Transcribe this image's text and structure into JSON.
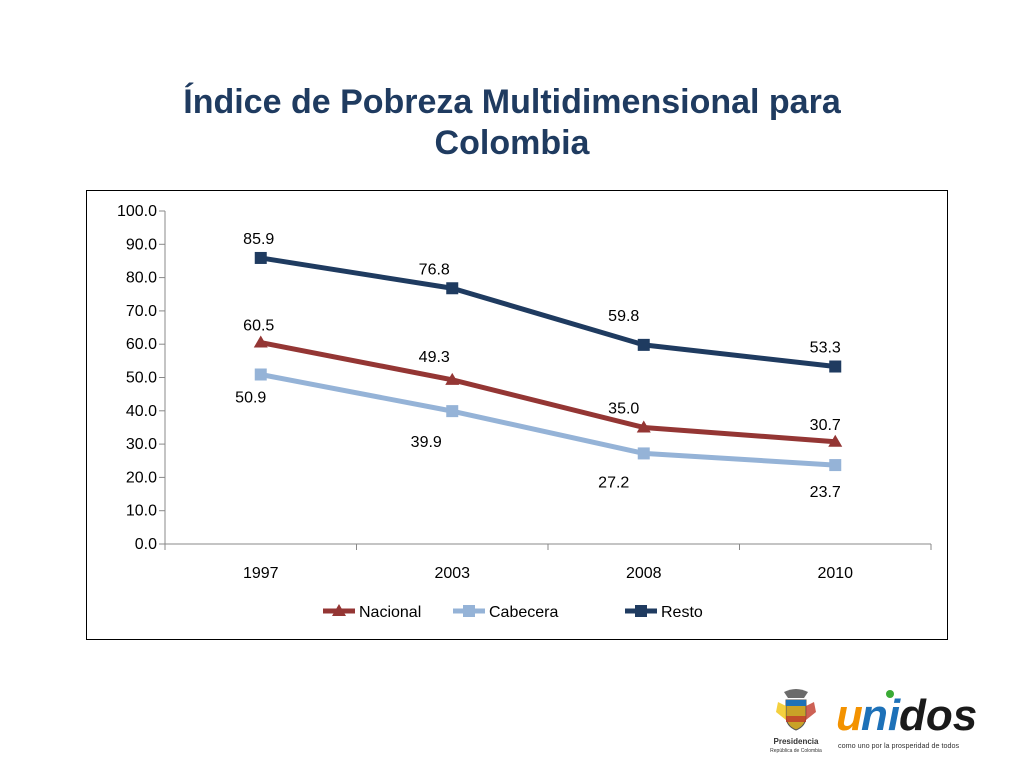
{
  "slide": {
    "title_line1": "Índice de Pobreza Multidimensional para",
    "title_line2": "Colombia"
  },
  "chart_data": {
    "type": "line",
    "title": "",
    "xlabel": "",
    "ylabel": "",
    "categories": [
      "1997",
      "2003",
      "2008",
      "2010"
    ],
    "ylim": [
      0,
      100
    ],
    "y_ticks": [
      0,
      10,
      20,
      30,
      40,
      50,
      60,
      70,
      80,
      90,
      100
    ],
    "y_tick_labels": [
      "0.0",
      "10.0",
      "20.0",
      "30.0",
      "40.0",
      "50.0",
      "60.0",
      "70.0",
      "80.0",
      "90.0",
      "100.0"
    ],
    "grid": false,
    "legend_position": "bottom",
    "series": [
      {
        "name": "Nacional",
        "values": [
          60.5,
          49.3,
          35.0,
          30.7
        ],
        "labels": [
          "60.5",
          "49.3",
          "35.0",
          "30.7"
        ],
        "color": "#943634",
        "marker": "triangle"
      },
      {
        "name": "Cabecera",
        "values": [
          50.9,
          39.9,
          27.2,
          23.7
        ],
        "labels": [
          "50.9",
          "39.9",
          "27.2",
          "23.7"
        ],
        "color": "#95b3d7",
        "marker": "square"
      },
      {
        "name": "Resto",
        "values": [
          85.9,
          76.8,
          59.8,
          53.3
        ],
        "labels": [
          "85.9",
          "76.8",
          "59.8",
          "53.3"
        ],
        "color": "#1f3b60",
        "marker": "square"
      }
    ]
  },
  "logos": {
    "presidencia_line1": "Presidencia",
    "presidencia_line2": "República de Colombia",
    "unidos_wordmark": "unidos",
    "unidos_tagline": "como uno por la prosperidad de todos",
    "colors": {
      "orange": "#f39200",
      "blue": "#1d71b8",
      "green": "#3aaa35"
    }
  }
}
